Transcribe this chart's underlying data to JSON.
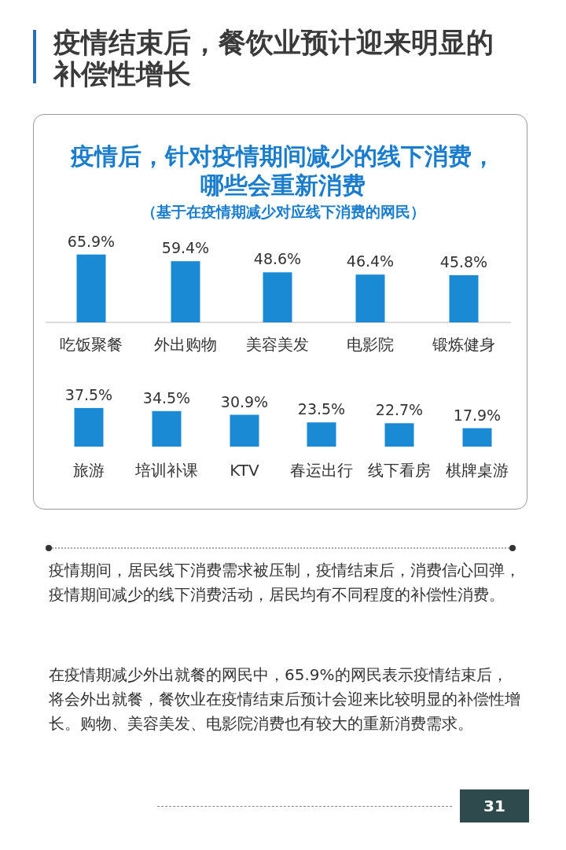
{
  "chart_data": [
    {
      "type": "bar",
      "title": "疫情后，针对疫情期间减少的线下消费，哪些会重新消费",
      "subtitle": "（基于在疫情期减少对应线下消费的网民）",
      "annotations": [
        "疫情结束后，餐饮业预计迎来明显的补偿性增长"
      ],
      "categories": [
        "吃饭聚餐",
        "外出购物",
        "美容美发",
        "电影院",
        "锻炼健身"
      ],
      "values": [
        65.9,
        59.4,
        48.6,
        46.4,
        45.8
      ],
      "value_labels": [
        "65.9%",
        "59.4%",
        "48.6%",
        "46.4%",
        "45.8%"
      ],
      "color": "#1a8ad4"
    },
    {
      "type": "bar",
      "categories": [
        "旅游",
        "培训补课",
        "KTV",
        "春运出行",
        "线下看房",
        "棋牌桌游"
      ],
      "values": [
        37.5,
        34.5,
        30.9,
        23.5,
        22.7,
        17.9
      ],
      "value_labels": [
        "37.5%",
        "34.5%",
        "30.9%",
        "23.5%",
        "22.7%",
        "17.9%"
      ],
      "color": "#1a8ad4",
      "annotations": [
        "疫情期间，居民线下消费需求被压制，疫情结束后，消费信心回弹，疫情期间减少的线下消费活动，居民均有不同程度的补偿性消费。",
        "在疫情期减少外出就餐的网民中，65.9%的网民表示疫情结束后，将会外出就餐，餐饮业在疫情结束后预计会迎来比较明显的补偿性增长。购物、美容美发、电影院消费也有较大的重新消费需求。",
        "31"
      ]
    }
  ]
}
